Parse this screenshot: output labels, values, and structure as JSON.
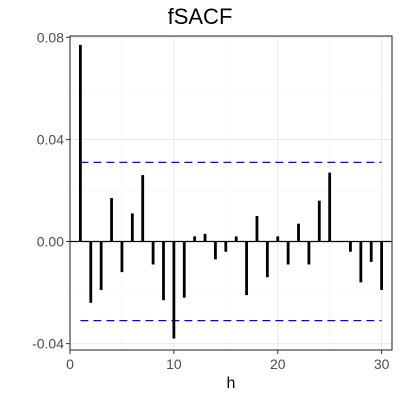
{
  "chart_data": {
    "type": "bar",
    "title": "fSACF",
    "xlabel": "h",
    "ylabel": "",
    "x": [
      1,
      2,
      3,
      4,
      5,
      6,
      7,
      8,
      9,
      10,
      11,
      12,
      13,
      14,
      15,
      16,
      17,
      18,
      19,
      20,
      21,
      22,
      23,
      24,
      25,
      26,
      27,
      28,
      29,
      30
    ],
    "values": [
      0.077,
      -0.024,
      -0.019,
      0.017,
      -0.012,
      0.011,
      0.026,
      -0.009,
      -0.023,
      -0.038,
      -0.022,
      0.002,
      0.003,
      -0.007,
      -0.004,
      0.002,
      -0.021,
      0.01,
      -0.014,
      0.002,
      -0.009,
      0.007,
      -0.009,
      0.016,
      0.027,
      0.0,
      -0.004,
      -0.016,
      -0.008,
      -0.019
    ],
    "confidence_bands": [
      0.031,
      -0.031
    ],
    "xlim": [
      0,
      31
    ],
    "ylim": [
      -0.0425,
      0.0805
    ],
    "xticks": [
      0,
      10,
      20,
      30
    ],
    "xtick_labels": [
      "0",
      "10",
      "20",
      "30"
    ],
    "yticks": [
      -0.04,
      0.0,
      0.04,
      0.08
    ],
    "ytick_labels": [
      "-0.04",
      "0.00",
      "0.04",
      "0.08"
    ],
    "grid": true,
    "colors": {
      "bars": "#000000",
      "bands": "#0000ff",
      "grid_major": "#ebebeb",
      "grid_minor": "#f5f5f5",
      "panel_border": "#333333",
      "axis_text": "#4d4d4d"
    }
  }
}
